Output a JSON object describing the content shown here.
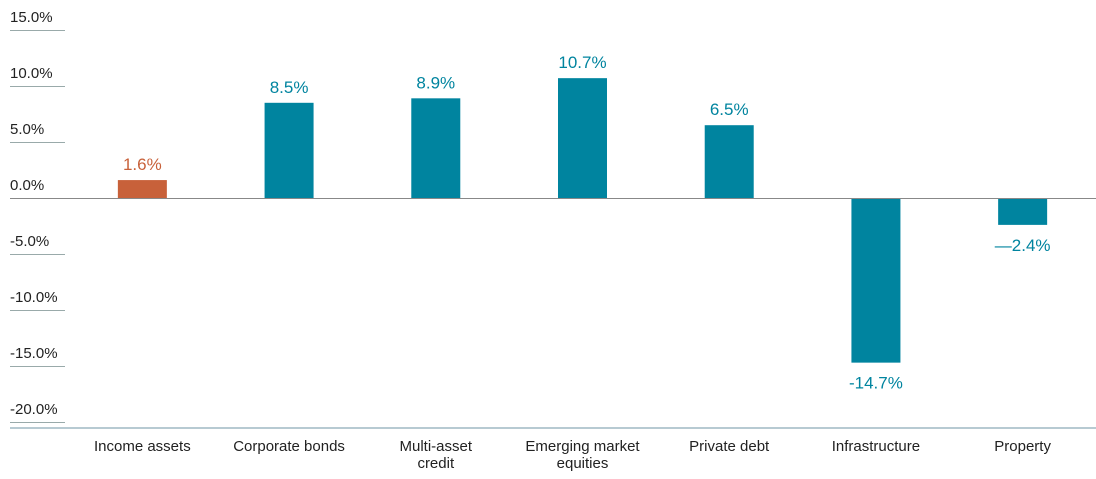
{
  "chart_data": {
    "type": "bar",
    "categories": [
      "Income assets",
      "Corporate bonds",
      "Multi-asset credit",
      "Emerging market equities",
      "Private debt",
      "Infrastructure",
      "Property"
    ],
    "values": [
      1.6,
      8.5,
      8.9,
      10.7,
      6.5,
      -14.7,
      -2.4
    ],
    "value_labels": [
      "1.6%",
      "8.5%",
      "8.9%",
      "10.7%",
      "6.5%",
      "-14.7%",
      "—2.4%"
    ],
    "colors": [
      "#c8613a",
      "#00849f",
      "#00849f",
      "#00849f",
      "#00849f",
      "#00849f",
      "#00849f"
    ],
    "ylim": [
      -20,
      15
    ],
    "yticks": [
      {
        "value": 15,
        "label": "15.0%"
      },
      {
        "value": 10,
        "label": "10.0%"
      },
      {
        "value": 5,
        "label": "5.0%"
      },
      {
        "value": 0,
        "label": "0.0%"
      },
      {
        "value": -5,
        "label": "-5.0%"
      },
      {
        "value": -10,
        "label": "-10.0%"
      },
      {
        "value": -15,
        "label": "-15.0%"
      },
      {
        "value": -20,
        "label": "-20.0%"
      }
    ]
  }
}
